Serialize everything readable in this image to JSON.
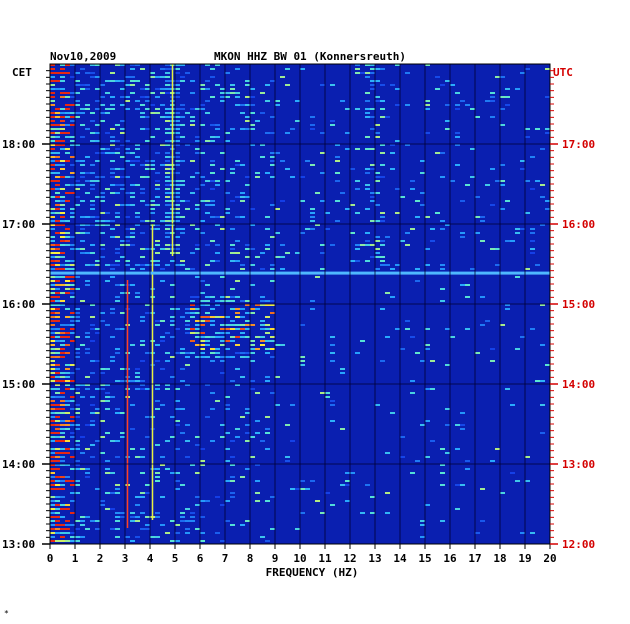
{
  "chart_data": {
    "type": "heatmap",
    "title_date": "Nov10,2009",
    "title_station": "MKON HHZ BW 01 (Konnersreuth)",
    "left_axis_label": "CET",
    "right_axis_label": "UTC",
    "xlabel": "FREQUENCY (HZ)",
    "xlim": [
      0,
      20
    ],
    "x_ticks": [
      "0",
      "1",
      "2",
      "3",
      "4",
      "5",
      "6",
      "7",
      "8",
      "9",
      "10",
      "11",
      "12",
      "13",
      "14",
      "15",
      "16",
      "17",
      "18",
      "19",
      "20"
    ],
    "y_ticks_cet": [
      "18:00",
      "17:00",
      "16:00",
      "15:00",
      "14:00",
      "13:00"
    ],
    "y_ticks_utc": [
      "17:00",
      "16:00",
      "15:00",
      "14:00",
      "13:00",
      "12:00"
    ],
    "cet_hours": [
      18,
      17,
      16,
      15,
      14,
      13
    ],
    "time_range_cet_hours": [
      13.0,
      19.0
    ],
    "grid": true,
    "colors": {
      "background": "#0a1fb0",
      "grid": "#000033",
      "utc_label": "#d40000",
      "text": "#000000"
    },
    "features": [
      {
        "name": "low-frequency band",
        "freq_hz": [
          0.2,
          0.8
        ],
        "time_cet": [
          13.0,
          19.0
        ]
      },
      {
        "name": "spectral line",
        "freq_hz": 3.1,
        "time_cet": [
          13.2,
          16.3
        ]
      },
      {
        "name": "spectral line",
        "freq_hz": 4.1,
        "time_cet": [
          13.3,
          17.0
        ]
      },
      {
        "name": "band",
        "freq_hz": 4.9,
        "time_cet": [
          16.6,
          19.0
        ]
      },
      {
        "name": "broadband burst",
        "freq_hz": [
          5.5,
          9.0
        ],
        "time_cet": [
          15.5,
          16.0
        ]
      },
      {
        "name": "broadband line",
        "freq_hz": [
          0,
          20
        ],
        "time_cet": 16.38
      }
    ]
  },
  "footer_mark": "*"
}
